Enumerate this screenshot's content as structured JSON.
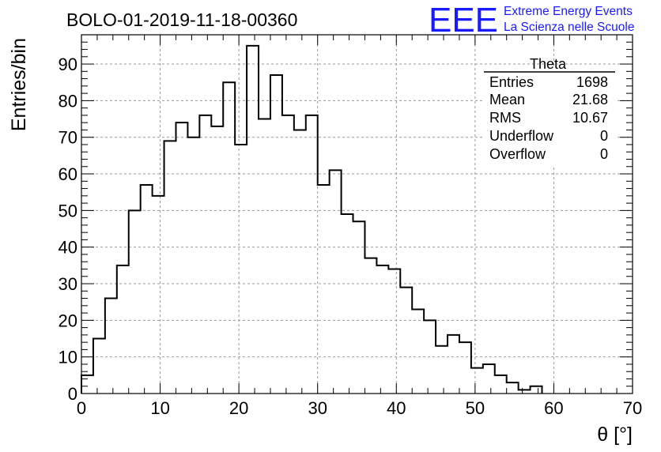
{
  "run_title": "BOLO-01-2019-11-18-00360",
  "logo": {
    "text": "EEE",
    "line1": "Extreme Energy Events",
    "line2": "La Scienza nelle Scuole",
    "color": "#1a1aff"
  },
  "stats": {
    "name": "Theta",
    "rows": [
      {
        "label": "Entries",
        "value": "1698"
      },
      {
        "label": "Mean",
        "value": "21.68"
      },
      {
        "label": "RMS",
        "value": "10.67"
      },
      {
        "label": "Underflow",
        "value": "0"
      },
      {
        "label": "Overflow",
        "value": "0"
      }
    ]
  },
  "chart_data": {
    "type": "bar",
    "style": "step-histogram",
    "xlabel": "θ [°]",
    "ylabel": "Entries/bin",
    "xlim": [
      0,
      70
    ],
    "ylim": [
      0,
      98
    ],
    "bin_width": 1.5,
    "bin_edges_start": 0,
    "x_ticks": [
      0,
      10,
      20,
      30,
      40,
      50,
      60,
      70
    ],
    "y_ticks": [
      0,
      10,
      20,
      30,
      40,
      50,
      60,
      70,
      80,
      90
    ],
    "grid": true,
    "values": [
      5,
      15,
      26,
      35,
      50,
      57,
      54,
      69,
      74,
      70,
      76,
      73,
      85,
      68,
      95,
      75,
      87,
      76,
      72,
      76,
      57,
      61,
      49,
      47,
      37,
      35,
      34,
      29,
      23,
      20,
      13,
      16,
      14,
      7,
      8,
      5,
      3,
      1,
      2
    ]
  }
}
